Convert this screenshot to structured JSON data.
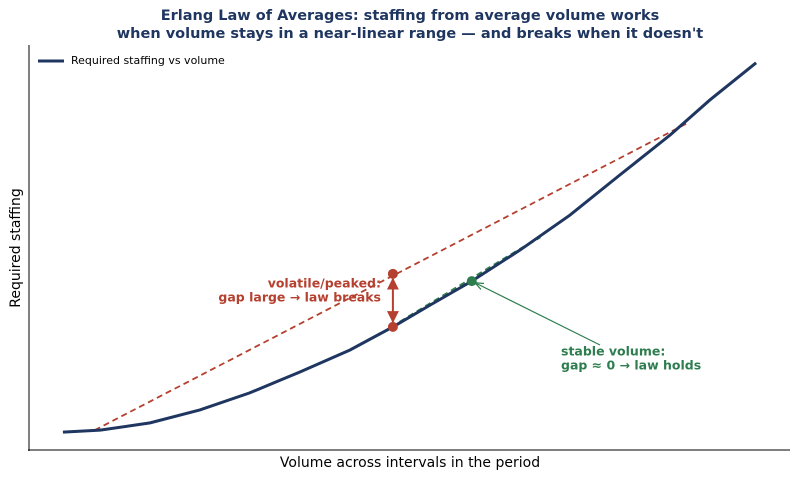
{
  "chart_data": {
    "type": "line",
    "title": [
      "Erlang Law of Averages: staffing from average volume works",
      "when volume stays in a near-linear range — and breaks when it doesn't"
    ],
    "x_label": "Volume across intervals in the period",
    "y_label": "Required staffing",
    "xlim": [
      0,
      11
    ],
    "ylim": [
      0,
      10
    ],
    "legend": "upper left",
    "series": [
      {
        "name": "Required staffing vs volume",
        "color": "#1f3660",
        "x": [
          0.49,
          1.03,
          1.75,
          2.47,
          3.19,
          3.92,
          4.64,
          5.26,
          5.8,
          6.4,
          7.1,
          7.82,
          8.54,
          9.27,
          9.84,
          10.51
        ],
        "values": [
          0.44,
          0.49,
          0.67,
          0.99,
          1.41,
          1.93,
          2.47,
          3.04,
          3.58,
          4.17,
          4.94,
          5.8,
          6.79,
          7.78,
          8.64,
          9.56
        ]
      }
    ],
    "reference_lines": [
      {
        "color": "#b5402f",
        "x": [
          0.95,
          9.55
        ],
        "values": [
          0.49,
          8.1
        ]
      },
      {
        "color": "#2e7d4f",
        "x": [
          5.36,
          7.39
        ],
        "values": [
          3.16,
          5.26
        ]
      }
    ],
    "markers": [
      {
        "color": "#b5402f",
        "x": [
          5.26,
          5.26
        ],
        "values": [
          4.35,
          3.04
        ]
      },
      {
        "color": "#2e7d4f",
        "x": [
          6.4
        ],
        "values": [
          4.17
        ]
      }
    ],
    "annotations": [
      {
        "lines": [
          "volatile/peaked:",
          "gap large → law breaks"
        ],
        "color": "#b5402f"
      },
      {
        "lines": [
          "stable volume:",
          "gap ≈ 0  → law holds"
        ],
        "color": "#2e7d4f"
      }
    ]
  }
}
